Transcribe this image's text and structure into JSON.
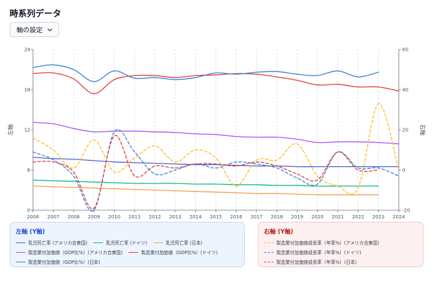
{
  "header": {
    "title": "時系列データ",
    "settings_label": "軸の設定"
  },
  "chart_data": {
    "type": "line",
    "x": [
      2006,
      2007,
      2008,
      2009,
      2010,
      2011,
      2012,
      2013,
      2014,
      2015,
      2016,
      2017,
      2018,
      2019,
      2020,
      2021,
      2022,
      2023,
      2024
    ],
    "xlim": [
      2006,
      2024
    ],
    "ylim_left": [
      0,
      24
    ],
    "ylim_right": [
      -20,
      60
    ],
    "yticks_left": [
      0,
      6,
      12,
      18,
      24
    ],
    "yticks_right": [
      -20,
      0,
      20,
      40,
      60
    ],
    "ylabel_left": "左軸",
    "ylabel_right": "右軸",
    "grid": "vertical-dashed",
    "series": [
      {
        "name": "乳児死亡率 (アメリカ合衆国)",
        "axis": "left",
        "style": "solid",
        "color": "#4f63d2",
        "values": [
          7.9,
          7.7,
          7.6,
          7.4,
          7.2,
          7.1,
          7.0,
          6.9,
          6.8,
          6.8,
          6.7,
          6.6,
          6.6,
          6.5,
          6.5,
          6.5,
          6.5,
          6.5,
          6.5
        ]
      },
      {
        "name": "乳児死亡率 (ドイツ)",
        "axis": "left",
        "style": "solid",
        "color": "#10b981",
        "values": [
          4.5,
          4.4,
          4.3,
          4.2,
          4.1,
          4.0,
          4.0,
          4.0,
          3.9,
          3.9,
          3.8,
          3.8,
          3.7,
          3.7,
          3.6,
          3.6,
          3.6,
          3.6,
          null
        ]
      },
      {
        "name": "乳児死亡率 (日本)",
        "axis": "left",
        "style": "solid",
        "color": "#f0a050",
        "values": [
          3.6,
          3.5,
          3.4,
          3.3,
          3.2,
          3.1,
          3.0,
          2.9,
          2.8,
          2.7,
          2.6,
          2.5,
          2.5,
          2.4,
          2.3,
          2.3,
          2.3,
          2.3,
          null
        ]
      },
      {
        "name": "製造業付加価値（GDP比%）(アメリカ合衆国)",
        "axis": "left",
        "style": "solid",
        "color": "#a855f7",
        "values": [
          13.1,
          12.9,
          12.2,
          11.7,
          11.8,
          11.8,
          11.7,
          11.6,
          11.4,
          11.3,
          11.0,
          10.9,
          10.9,
          10.6,
          10.1,
          10.2,
          10.2,
          10.1,
          9.9
        ]
      },
      {
        "name": "製造業付加価値（GDP比%）(ドイツ)",
        "axis": "left",
        "style": "solid",
        "color": "#e23d3d",
        "values": [
          20.4,
          20.5,
          19.6,
          17.4,
          19.5,
          20.1,
          20.1,
          19.8,
          20.1,
          20.2,
          20.4,
          20.3,
          19.9,
          19.4,
          18.7,
          18.8,
          18.4,
          18.4,
          17.8
        ]
      },
      {
        "name": "製造業付加価値（GDP比%）(日本)",
        "axis": "left",
        "style": "solid",
        "color": "#3b82d6",
        "values": [
          21.3,
          21.7,
          21.0,
          19.2,
          20.8,
          19.7,
          19.8,
          19.5,
          19.8,
          20.5,
          20.3,
          20.6,
          20.7,
          20.3,
          20.1,
          20.8,
          19.9,
          20.6,
          null
        ]
      },
      {
        "name": "製造業付加価値成長率（年率%）(アメリカ合衆国)",
        "axis": "right",
        "style": "dashed",
        "color": "#fbbf24",
        "values": [
          16,
          10,
          1,
          15,
          -1,
          6,
          12,
          4,
          10,
          6,
          -8,
          5,
          5,
          13,
          -3,
          -8,
          -9,
          33,
          0
        ]
      },
      {
        "name": "製造業付加価値成長率（年率%）(ドイツ)",
        "axis": "right",
        "style": "dashed",
        "color": "#3b82d6",
        "values": [
          9,
          5,
          -3,
          -20,
          19,
          9,
          -2,
          0,
          3,
          1,
          4,
          3,
          1,
          -4,
          -7,
          9,
          1,
          1,
          -3
        ]
      },
      {
        "name": "製造業付加価値成長率（年率%）(日本)",
        "axis": "right",
        "style": "dashed",
        "color": "#e23d3d",
        "values": [
          4,
          4,
          -1,
          -19,
          17,
          -3,
          2,
          1,
          3,
          3,
          2,
          4,
          2,
          -2,
          -5,
          9,
          0,
          0,
          null
        ]
      }
    ]
  },
  "legend": {
    "left_title": "左軸 (Y軸)",
    "right_title": "右軸 (Y軸)",
    "left_items": [
      {
        "label": "乳児死亡率 (アメリカ合衆国)",
        "color": "#4f63d2",
        "style": "solid"
      },
      {
        "label": "乳児死亡率 (ドイツ)",
        "color": "#10b981",
        "style": "solid"
      },
      {
        "label": "乳児死亡率 (日本)",
        "color": "#f0a050",
        "style": "solid"
      },
      {
        "label": "製造業付加価値（GDP比%）(アメリカ合衆国)",
        "color": "#a855f7",
        "style": "solid"
      },
      {
        "label": "製造業付加価値（GDP比%）(ドイツ)",
        "color": "#e23d3d",
        "style": "solid"
      },
      {
        "label": "製造業付加価値（GDP比%）(日本)",
        "color": "#3b82d6",
        "style": "solid"
      }
    ],
    "right_items": [
      {
        "label": "製造業付加価値成長率（年率%）(アメリカ合衆国)",
        "color": "#fbbf24",
        "style": "dashed"
      },
      {
        "label": "製造業付加価値成長率（年率%）(ドイツ)",
        "color": "#3b82d6",
        "style": "dashed"
      },
      {
        "label": "製造業付加価値成長率（年率%）(日本)",
        "color": "#e23d3d",
        "style": "dashed"
      }
    ]
  }
}
